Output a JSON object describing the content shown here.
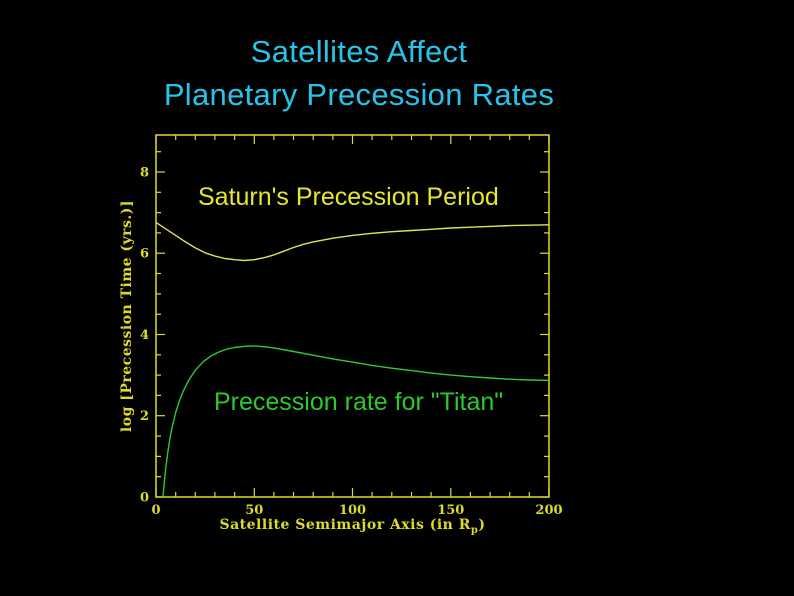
{
  "slide": {
    "title_lines": [
      "Satellites Affect",
      "Planetary Precession Rates"
    ],
    "title_color": "#27c3e8",
    "background_color": "#000000"
  },
  "chart_data": {
    "type": "line",
    "title": "",
    "xlabel_prefix": "Satellite Semimajor Axis (in R",
    "xlabel_subscript": "p",
    "xlabel_suffix": ")",
    "ylabel": "log [Precession Time (yrs.)]",
    "xlim": [
      0,
      200
    ],
    "ylim": [
      0,
      8.91
    ],
    "x_major_ticks": [
      0,
      50,
      100,
      150,
      200
    ],
    "x_minor_step": 10,
    "y_major_ticks": [
      0,
      2,
      4,
      6,
      8
    ],
    "y_minor_step": 0.5,
    "grid": false,
    "legend": "none",
    "axis_color": "#dcdc28",
    "series": [
      {
        "name": "Saturn's Precession Period",
        "color": "#e2e258",
        "x": [
          0,
          5,
          10,
          15,
          20,
          25,
          30,
          35,
          40,
          45,
          50,
          55,
          60,
          65,
          70,
          75,
          80,
          90,
          100,
          110,
          120,
          130,
          140,
          150,
          160,
          170,
          180,
          190,
          200
        ],
        "y": [
          6.76,
          6.6,
          6.44,
          6.28,
          6.13,
          6.01,
          5.93,
          5.87,
          5.84,
          5.82,
          5.84,
          5.89,
          5.96,
          6.05,
          6.14,
          6.22,
          6.28,
          6.37,
          6.44,
          6.49,
          6.53,
          6.56,
          6.59,
          6.62,
          6.64,
          6.66,
          6.68,
          6.69,
          6.7
        ]
      },
      {
        "name": "Precession rate for \"Titan\"",
        "color": "#2ecb34",
        "x": [
          3.5,
          4,
          5,
          6,
          7,
          8,
          10,
          12,
          14,
          17,
          20,
          24,
          28,
          32,
          36,
          40,
          45,
          50,
          55,
          60,
          70,
          80,
          90,
          100,
          110,
          120,
          130,
          140,
          150,
          160,
          170,
          180,
          190,
          200
        ],
        "y": [
          0,
          0.25,
          0.72,
          1.1,
          1.42,
          1.68,
          2.08,
          2.38,
          2.62,
          2.9,
          3.12,
          3.33,
          3.47,
          3.57,
          3.64,
          3.68,
          3.71,
          3.72,
          3.7,
          3.67,
          3.58,
          3.49,
          3.4,
          3.32,
          3.24,
          3.17,
          3.11,
          3.05,
          3.0,
          2.96,
          2.93,
          2.9,
          2.88,
          2.87
        ]
      }
    ],
    "annotations": [
      {
        "text": "Saturn's Precession Period",
        "color": "#e6e62a"
      },
      {
        "text": "Precession rate for \"Titan\"",
        "color": "#2bc92b"
      }
    ]
  }
}
